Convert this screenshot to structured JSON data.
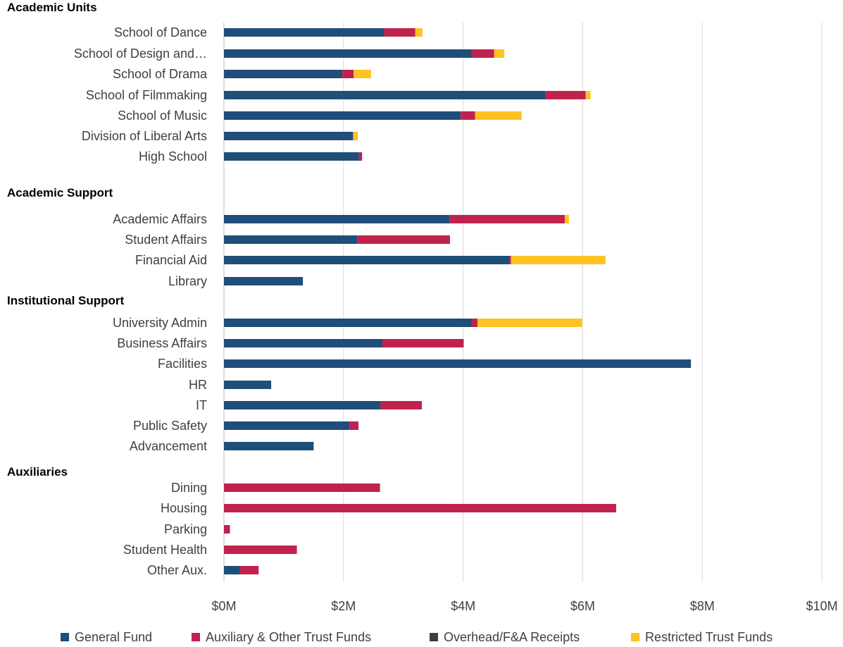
{
  "chart_data": {
    "type": "bar",
    "orientation": "horizontal",
    "stacked": true,
    "x_ticks": [
      "$0M",
      "$2M",
      "$4M",
      "$6M",
      "$8M",
      "$10M"
    ],
    "xlim": [
      0,
      10
    ],
    "grid": true,
    "legend_position": "bottom",
    "series": [
      {
        "name": "General Fund",
        "color": "#1f4e79"
      },
      {
        "name": "Auxiliary & Other Trust Funds",
        "color": "#c0224e"
      },
      {
        "name": "Overhead/F&A Receipts",
        "color": "#3a3f44"
      },
      {
        "name": "Restricted Trust Funds",
        "color": "#ffc222"
      }
    ],
    "groups": [
      {
        "label": "Academic Units",
        "items": [
          {
            "label": "School of Dance",
            "values": [
              2.68,
              0.52,
              0,
              0.12
            ]
          },
          {
            "label": "School of Design and…",
            "values": [
              4.14,
              0.38,
              0,
              0.17
            ]
          },
          {
            "label": "School of Drama",
            "values": [
              1.98,
              0.19,
              0,
              0.29
            ]
          },
          {
            "label": "School of Filmmaking",
            "values": [
              5.38,
              0.67,
              0,
              0.08
            ]
          },
          {
            "label": "School of Music",
            "values": [
              3.96,
              0.24,
              0,
              0.78
            ]
          },
          {
            "label": "Division of Liberal Arts",
            "values": [
              2.16,
              0,
              0,
              0.08
            ]
          },
          {
            "label": "High School",
            "values": [
              2.26,
              0.05,
              0,
              0
            ]
          }
        ]
      },
      {
        "label": "Academic Support",
        "items": [
          {
            "label": "Academic Affairs",
            "values": [
              3.77,
              1.93,
              0,
              0.07
            ]
          },
          {
            "label": "Student Affairs",
            "values": [
              2.23,
              1.55,
              0,
              0
            ]
          },
          {
            "label": "Financial Aid",
            "values": [
              4.77,
              0.03,
              0,
              1.58
            ]
          },
          {
            "label": "Library",
            "values": [
              1.32,
              0,
              0,
              0
            ]
          }
        ]
      },
      {
        "label": "Institutional Support",
        "items": [
          {
            "label": "University Admin",
            "values": [
              4.14,
              0.1,
              0,
              1.75
            ]
          },
          {
            "label": "Business Affairs",
            "values": [
              2.65,
              1.36,
              0,
              0
            ]
          },
          {
            "label": "Facilities",
            "values": [
              7.81,
              0,
              0,
              0
            ]
          },
          {
            "label": "HR",
            "values": [
              0.79,
              0,
              0,
              0
            ]
          },
          {
            "label": "IT",
            "values": [
              2.62,
              0.69,
              0,
              0
            ]
          },
          {
            "label": "Public Safety",
            "values": [
              2.1,
              0.15,
              0,
              0
            ]
          },
          {
            "label": "Advancement",
            "values": [
              1.5,
              0,
              0,
              0
            ]
          }
        ]
      },
      {
        "label": "Auxiliaries",
        "items": [
          {
            "label": "Dining",
            "values": [
              0,
              2.61,
              0,
              0
            ]
          },
          {
            "label": "Housing",
            "values": [
              0,
              6.56,
              0,
              0
            ]
          },
          {
            "label": "Parking",
            "values": [
              0,
              0.1,
              0,
              0
            ]
          },
          {
            "label": "Student Health",
            "values": [
              0,
              1.22,
              0,
              0
            ]
          },
          {
            "label": "Other Aux.",
            "values": [
              0.27,
              0.31,
              0,
              0
            ]
          }
        ]
      }
    ]
  }
}
